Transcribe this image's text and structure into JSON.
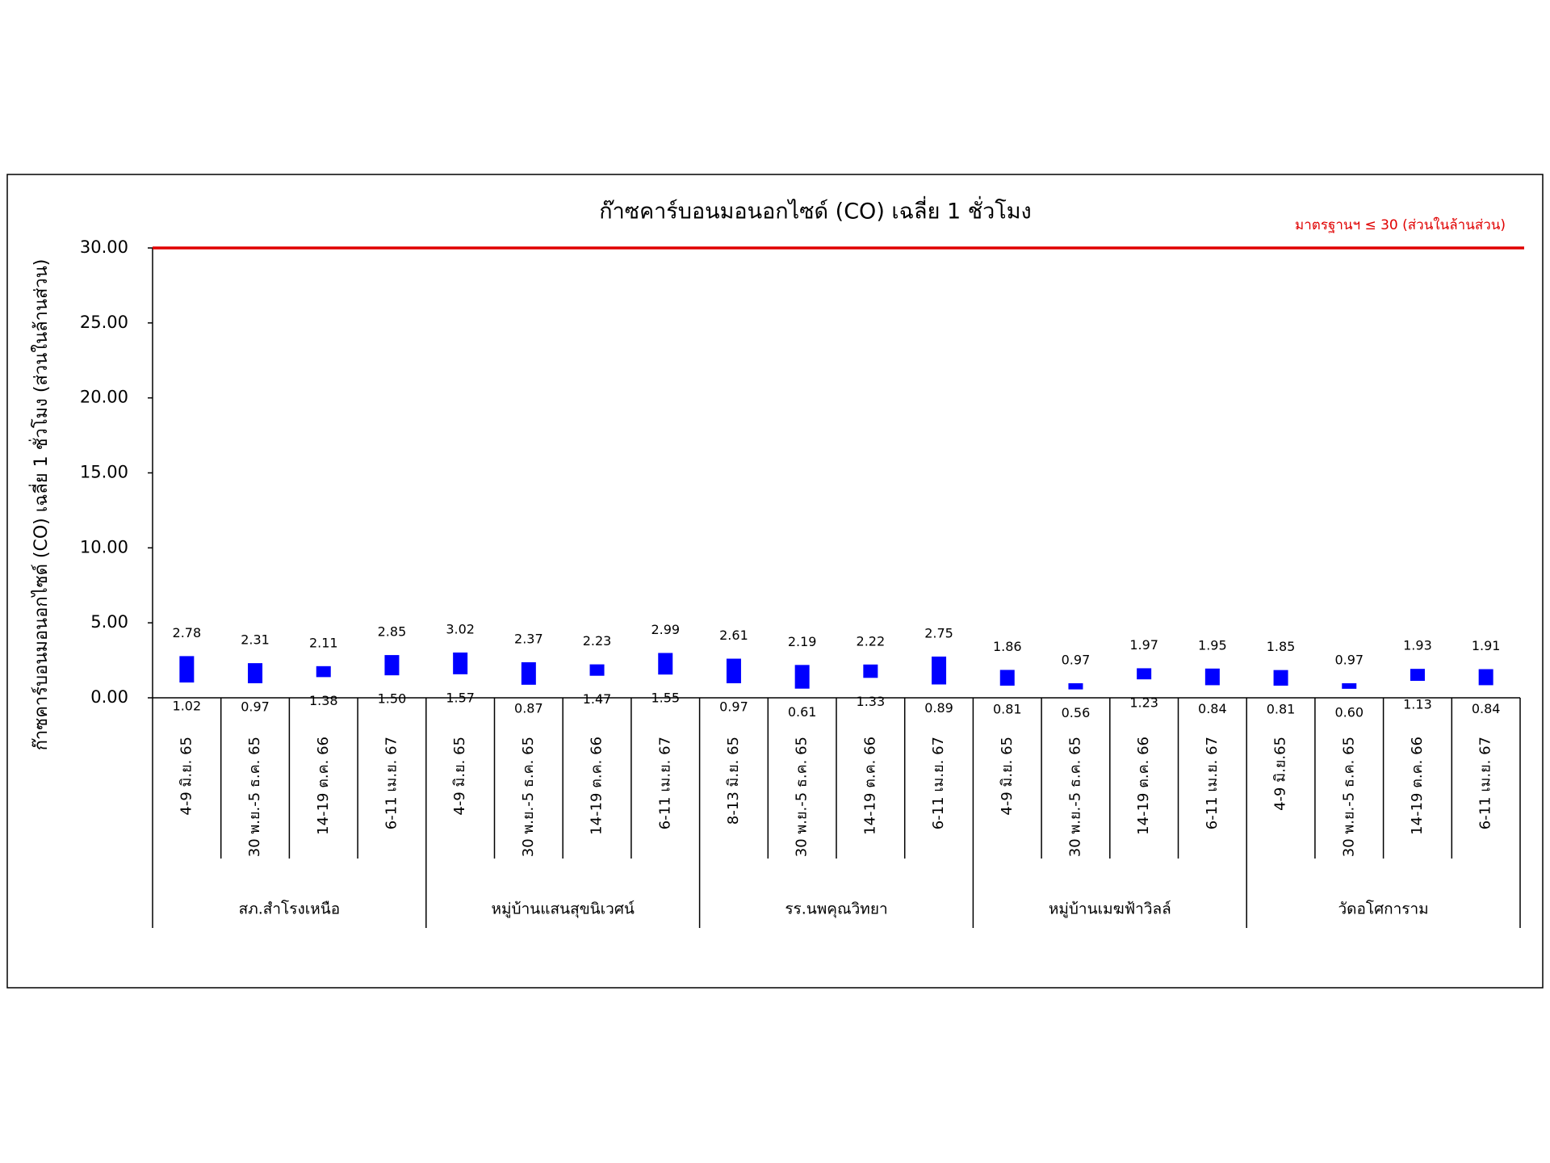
{
  "chart_data": {
    "type": "floating-bar",
    "title": "ก๊าซคาร์บอนมอนอกไซด์ (CO) เฉลี่ย 1 ชั่วโมง",
    "y_label": "ก๊าซคาร์บอนมอนอกไซด์ (CO) เฉลี่ย 1 ชั่วโมง (ส่วนในล้านส่วน)",
    "reference": {
      "value": 30,
      "label": "มาตรฐานฯ ≤ 30 (ส่วนในล้านส่วน)",
      "color": "#e00000"
    },
    "groups": [
      {
        "name": "สภ.สำโรงเหนือ",
        "categories": [
          "4-9 มิ.ย. 65",
          "30 พ.ย.-5 ธ.ค. 65",
          "14-19 ต.ค. 66",
          "6-11 เม.ย. 67"
        ]
      },
      {
        "name": "หมู่บ้านแสนสุขนิเวศน์",
        "categories": [
          "4-9 มิ.ย. 65",
          "30 พ.ย.-5 ธ.ค. 65",
          "14-19 ต.ค. 66",
          "6-11 เม.ย. 67"
        ]
      },
      {
        "name": "รร.นพคุณวิทยา",
        "categories": [
          "8-13 มิ.ย. 65",
          "30 พ.ย.-5 ธ.ค. 65",
          "14-19 ต.ค. 66",
          "6-11 เม.ย. 67"
        ]
      },
      {
        "name": "หมู่บ้านเมฆฟ้าวิลล์",
        "categories": [
          "4-9 มิ.ย. 65",
          "30 พ.ย.-5 ธ.ค. 65",
          "14-19 ต.ค. 66",
          "6-11 เม.ย. 67"
        ]
      },
      {
        "name": "วัดอโศการาม",
        "categories": [
          "4-9 มิ.ย.65",
          "30 พ.ย.-5 ธ.ค. 65",
          "14-19 ต.ค. 66",
          "6-11 เม.ย. 67"
        ]
      }
    ],
    "low": [
      1.02,
      0.97,
      1.38,
      1.5,
      1.57,
      0.87,
      1.47,
      1.55,
      0.97,
      0.61,
      1.33,
      0.89,
      0.81,
      0.56,
      1.23,
      0.84,
      0.81,
      0.6,
      1.13,
      0.84
    ],
    "low_labels": [
      "1.02",
      "0.97",
      "1.38",
      "1.50",
      "1.57",
      "0.87",
      "1.47",
      "1.55",
      "0.97",
      "0.61",
      "1.33",
      "0.89",
      "0.81",
      "0.56",
      "1.23",
      "0.84",
      "0.81",
      "0.60",
      "1.13",
      "0.84"
    ],
    "high": [
      2.78,
      2.31,
      2.11,
      2.85,
      3.02,
      2.37,
      2.23,
      2.99,
      2.61,
      2.19,
      2.22,
      2.75,
      1.86,
      0.97,
      1.97,
      1.95,
      1.85,
      0.97,
      1.93,
      1.91
    ],
    "high_labels": [
      "2.78",
      "2.31",
      "2.11",
      "2.85",
      "3.02",
      "2.37",
      "2.23",
      "2.99",
      "2.61",
      "2.19",
      "2.22",
      "2.75",
      "1.86",
      "0.97",
      "1.97",
      "1.95",
      "1.85",
      "0.97",
      "1.93",
      "1.91"
    ],
    "color": "#0000ff",
    "ylim": [
      0,
      30
    ],
    "yticks": [
      {
        "value": 0,
        "label": "0.00"
      },
      {
        "value": 5,
        "label": "5.00"
      },
      {
        "value": 10,
        "label": "10.00"
      },
      {
        "value": 15,
        "label": "15.00"
      },
      {
        "value": 20,
        "label": "20.00"
      },
      {
        "value": 25,
        "label": "25.00"
      },
      {
        "value": 30,
        "label": "30.00"
      }
    ]
  }
}
